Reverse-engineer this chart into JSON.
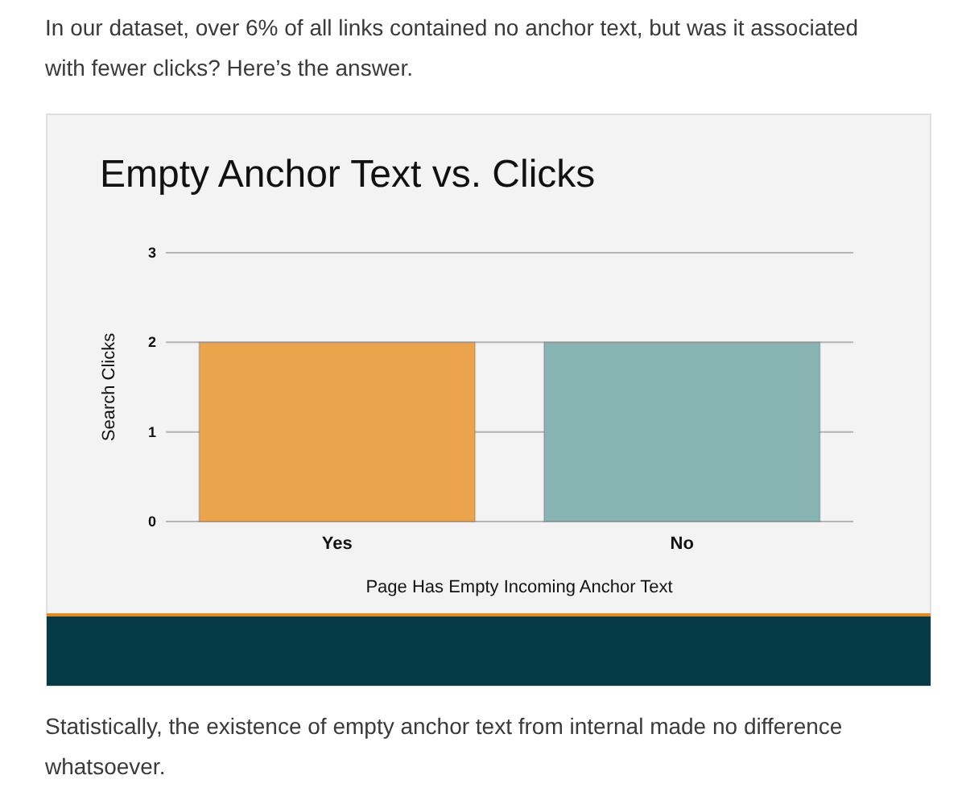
{
  "chart_data": {
    "type": "bar",
    "title": "Empty Anchor Text vs. Clicks",
    "subtitle": "In our dataset, over 6% of all links contained no anchor text, but was it associated with fewer clicks? Here’s the answer.",
    "annotations": [
      "Statistically, the existence of empty anchor text from internal made no difference whatsoever."
    ],
    "categories": [
      "Yes",
      "No"
    ],
    "values": [
      2,
      2
    ],
    "colors": [
      "#eba44c",
      "#89b4b4"
    ],
    "xlabel": "Page Has Empty Incoming Anchor Text",
    "ylabel": "Search Clicks",
    "ylim": [
      0,
      3
    ],
    "yticks": [
      0,
      1,
      2,
      3
    ],
    "grid": "y"
  }
}
